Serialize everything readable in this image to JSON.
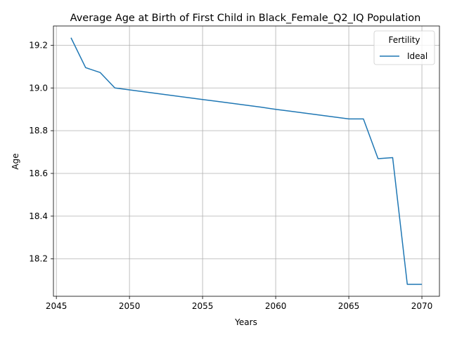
{
  "chart_data": {
    "type": "line",
    "title": "Average Age at Birth of First Child in Black_Female_Q2_IQ Population",
    "xlabel": "Years",
    "ylabel": "Age",
    "xlim": [
      2044.8,
      2071.2
    ],
    "ylim": [
      18.025,
      19.29
    ],
    "x_ticks": [
      2045,
      2050,
      2055,
      2060,
      2065,
      2070
    ],
    "y_ticks": [
      18.2,
      18.4,
      18.6,
      18.8,
      19.0,
      19.2
    ],
    "x_tick_labels": [
      "2045",
      "2050",
      "2055",
      "2060",
      "2065",
      "2070"
    ],
    "y_tick_labels": [
      "18.2",
      "18.4",
      "18.6",
      "18.8",
      "19.0",
      "19.2"
    ],
    "grid": true,
    "legend": {
      "title": "Fertility",
      "placement": "top-right"
    },
    "series": [
      {
        "name": "Ideal",
        "color": "#1f77b4",
        "x": [
          2046,
          2047,
          2048,
          2049,
          2050,
          2051,
          2052,
          2053,
          2054,
          2055,
          2056,
          2057,
          2058,
          2059,
          2060,
          2061,
          2062,
          2063,
          2064,
          2065,
          2066,
          2067,
          2068,
          2069,
          2070
        ],
        "y": [
          19.235,
          19.095,
          19.072,
          19.0,
          18.991,
          18.982,
          18.973,
          18.964,
          18.955,
          18.946,
          18.937,
          18.928,
          18.919,
          18.91,
          18.9,
          18.891,
          18.882,
          18.873,
          18.864,
          18.855,
          18.855,
          18.669,
          18.674,
          18.081,
          18.081
        ]
      }
    ]
  }
}
